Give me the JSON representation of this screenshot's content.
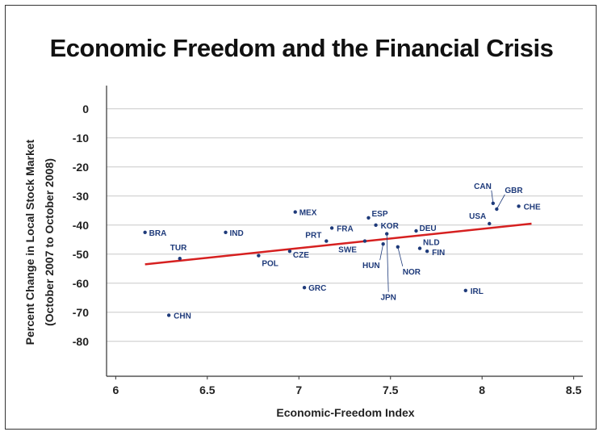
{
  "chart_data": {
    "type": "scatter",
    "title": "Economic Freedom and the Financial Crisis",
    "xlabel": "Economic-Freedom Index",
    "ylabel_lines": [
      "Percent Change in Local Stock Market",
      "(October 2007 to October 2008)"
    ],
    "xlim": [
      5.95,
      8.55
    ],
    "ylim": [
      -92,
      8
    ],
    "xticks": [
      "6",
      "6.5",
      "7",
      "7.5",
      "8",
      "8.5"
    ],
    "xtick_values": [
      6,
      6.5,
      7,
      7.5,
      8,
      8.5
    ],
    "yticks": [
      "0",
      "-10",
      "-20",
      "-30",
      "-40",
      "-50",
      "-60",
      "-70",
      "-80"
    ],
    "ytick_values": [
      0,
      -10,
      -20,
      -30,
      -40,
      -50,
      -60,
      -70,
      -80
    ],
    "grid": "horizontal",
    "points": [
      {
        "label": "BRA",
        "x": 6.16,
        "y": -42.5
      },
      {
        "label": "TUR",
        "x": 6.35,
        "y": -51.5
      },
      {
        "label": "CHN",
        "x": 6.29,
        "y": -71
      },
      {
        "label": "IND",
        "x": 6.6,
        "y": -42.5
      },
      {
        "label": "POL",
        "x": 6.78,
        "y": -50.5
      },
      {
        "label": "MEX",
        "x": 6.98,
        "y": -35.5
      },
      {
        "label": "CZE",
        "x": 6.95,
        "y": -49
      },
      {
        "label": "GRC",
        "x": 7.03,
        "y": -61.5
      },
      {
        "label": "PRT",
        "x": 7.15,
        "y": -45.5
      },
      {
        "label": "FRA",
        "x": 7.18,
        "y": -41
      },
      {
        "label": "ESP",
        "x": 7.38,
        "y": -37.5
      },
      {
        "label": "KOR",
        "x": 7.42,
        "y": -40
      },
      {
        "label": "SWE",
        "x": 7.36,
        "y": -45.5
      },
      {
        "label": "HUN",
        "x": 7.46,
        "y": -46.5
      },
      {
        "label": "JPN",
        "x": 7.48,
        "y": -43
      },
      {
        "label": "NOR",
        "x": 7.54,
        "y": -47.5
      },
      {
        "label": "DEU",
        "x": 7.64,
        "y": -42
      },
      {
        "label": "NLD",
        "x": 7.66,
        "y": -48
      },
      {
        "label": "FIN",
        "x": 7.7,
        "y": -49
      },
      {
        "label": "IRL",
        "x": 7.91,
        "y": -62.5
      },
      {
        "label": "USA",
        "x": 8.04,
        "y": -39.5
      },
      {
        "label": "CAN",
        "x": 8.06,
        "y": -32.5
      },
      {
        "label": "GBR",
        "x": 8.08,
        "y": -34.5
      },
      {
        "label": "CHE",
        "x": 8.2,
        "y": -33.5
      }
    ],
    "trendline": {
      "x": [
        6.16,
        8.27
      ],
      "y": [
        -53.5,
        -39.5
      ],
      "color": "#d62020"
    },
    "point_color": "#1e3a7a"
  }
}
